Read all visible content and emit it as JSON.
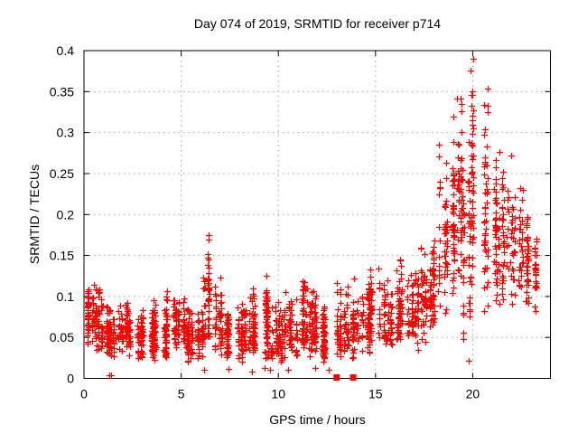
{
  "chart_data": {
    "type": "scatter",
    "title": "Day 074 of 2019, SRMTID for receiver p714",
    "xlabel": "GPS time / hours",
    "ylabel": "SRMTID / TECUs",
    "xlim": [
      0,
      24
    ],
    "ylim": [
      0,
      0.4
    ],
    "xticks": {
      "values": [
        0,
        5,
        10,
        15,
        20
      ],
      "labels": [
        "0",
        "5",
        "10",
        "15",
        "20"
      ]
    },
    "yticks": {
      "values": [
        0,
        0.05,
        0.1,
        0.15,
        0.2,
        0.25,
        0.3,
        0.35,
        0.4
      ],
      "labels": [
        "0",
        "0.05",
        "0.1",
        "0.15",
        "0.2",
        "0.25",
        "0.3",
        "0.35",
        "0.4"
      ]
    },
    "grid": {
      "on": true,
      "style": "dotted",
      "color": "#9e9e9e"
    },
    "legend": {
      "visible": false
    },
    "marker": {
      "symbol": "plus",
      "size": 7,
      "color": "#ff0000"
    },
    "series_name": "SRMTID",
    "seed": 20190074,
    "columns_per_hour": 6,
    "x_jitter": 0.045,
    "density_segments": [
      {
        "x0": 0.0,
        "x1": 0.35,
        "n": 40,
        "ymin": 0.035,
        "ymode": 0.075,
        "ymax": 0.115
      },
      {
        "x0": 0.35,
        "x1": 0.8,
        "n": 55,
        "ymin": 0.03,
        "ymode": 0.065,
        "ymax": 0.12
      },
      {
        "x0": 0.8,
        "x1": 1.25,
        "n": 50,
        "ymin": 0.025,
        "ymode": 0.055,
        "ymax": 0.105
      },
      {
        "x0": 1.25,
        "x1": 1.75,
        "n": 50,
        "ymin": 0.02,
        "ymode": 0.045,
        "ymax": 0.09
      },
      {
        "x0": 1.75,
        "x1": 2.35,
        "n": 60,
        "ymin": 0.025,
        "ymode": 0.05,
        "ymax": 0.1
      },
      {
        "x0": 2.35,
        "x1": 2.95,
        "n": 60,
        "ymin": 0.02,
        "ymode": 0.045,
        "ymax": 0.085
      },
      {
        "x0": 2.95,
        "x1": 3.55,
        "n": 60,
        "ymin": 0.02,
        "ymode": 0.045,
        "ymax": 0.095
      },
      {
        "x0": 3.55,
        "x1": 4.15,
        "n": 60,
        "ymin": 0.02,
        "ymode": 0.05,
        "ymax": 0.105
      },
      {
        "x0": 4.15,
        "x1": 4.65,
        "n": 55,
        "ymin": 0.025,
        "ymode": 0.055,
        "ymax": 0.115
      },
      {
        "x0": 4.65,
        "x1": 5.15,
        "n": 60,
        "ymin": 0.03,
        "ymode": 0.06,
        "ymax": 0.11
      },
      {
        "x0": 5.15,
        "x1": 5.75,
        "n": 55,
        "ymin": 0.02,
        "ymode": 0.045,
        "ymax": 0.09
      },
      {
        "x0": 5.75,
        "x1": 6.15,
        "n": 45,
        "ymin": 0.02,
        "ymode": 0.05,
        "ymax": 0.095
      },
      {
        "x0": 6.15,
        "x1": 6.65,
        "n": 50,
        "ymin": 0.03,
        "ymode": 0.08,
        "ymax": 0.185
      },
      {
        "x0": 6.65,
        "x1": 7.15,
        "n": 50,
        "ymin": 0.025,
        "ymode": 0.055,
        "ymax": 0.13
      },
      {
        "x0": 7.15,
        "x1": 7.65,
        "n": 50,
        "ymin": 0.02,
        "ymode": 0.045,
        "ymax": 0.1
      },
      {
        "x0": 7.65,
        "x1": 8.35,
        "n": 65,
        "ymin": 0.02,
        "ymode": 0.05,
        "ymax": 0.1
      },
      {
        "x0": 8.35,
        "x1": 8.95,
        "n": 60,
        "ymin": 0.02,
        "ymode": 0.05,
        "ymax": 0.12
      },
      {
        "x0": 8.95,
        "x1": 9.55,
        "n": 60,
        "ymin": 0.015,
        "ymode": 0.045,
        "ymax": 0.13
      },
      {
        "x0": 9.55,
        "x1": 10.25,
        "n": 65,
        "ymin": 0.015,
        "ymode": 0.04,
        "ymax": 0.1
      },
      {
        "x0": 10.25,
        "x1": 10.95,
        "n": 65,
        "ymin": 0.02,
        "ymode": 0.05,
        "ymax": 0.115
      },
      {
        "x0": 10.95,
        "x1": 11.55,
        "n": 60,
        "ymin": 0.025,
        "ymode": 0.06,
        "ymax": 0.135
      },
      {
        "x0": 11.55,
        "x1": 12.25,
        "n": 65,
        "ymin": 0.02,
        "ymode": 0.05,
        "ymax": 0.115
      },
      {
        "x0": 12.25,
        "x1": 12.95,
        "n": 60,
        "ymin": 0.015,
        "ymode": 0.04,
        "ymax": 0.095
      },
      {
        "x0": 12.95,
        "x1": 13.45,
        "n": 50,
        "ymin": 0.02,
        "ymode": 0.045,
        "ymax": 0.13
      },
      {
        "x0": 13.45,
        "x1": 14.05,
        "n": 55,
        "ymin": 0.02,
        "ymode": 0.05,
        "ymax": 0.125
      },
      {
        "x0": 14.05,
        "x1": 14.65,
        "n": 55,
        "ymin": 0.03,
        "ymode": 0.06,
        "ymax": 0.13
      },
      {
        "x0": 14.65,
        "x1": 15.25,
        "n": 55,
        "ymin": 0.03,
        "ymode": 0.065,
        "ymax": 0.155
      },
      {
        "x0": 15.25,
        "x1": 15.85,
        "n": 55,
        "ymin": 0.03,
        "ymode": 0.06,
        "ymax": 0.13
      },
      {
        "x0": 15.85,
        "x1": 16.45,
        "n": 55,
        "ymin": 0.035,
        "ymode": 0.065,
        "ymax": 0.155
      },
      {
        "x0": 16.45,
        "x1": 17.05,
        "n": 55,
        "ymin": 0.04,
        "ymode": 0.07,
        "ymax": 0.14
      },
      {
        "x0": 17.05,
        "x1": 17.65,
        "n": 55,
        "ymin": 0.04,
        "ymode": 0.08,
        "ymax": 0.165
      },
      {
        "x0": 17.65,
        "x1": 18.2,
        "n": 55,
        "ymin": 0.05,
        "ymode": 0.09,
        "ymax": 0.19
      },
      {
        "x0": 18.2,
        "x1": 18.7,
        "n": 50,
        "ymin": 0.07,
        "ymode": 0.13,
        "ymax": 0.3
      },
      {
        "x0": 18.7,
        "x1": 19.1,
        "n": 45,
        "ymin": 0.09,
        "ymode": 0.18,
        "ymax": 0.36
      },
      {
        "x0": 19.1,
        "x1": 19.45,
        "n": 48,
        "ymin": 0.1,
        "ymode": 0.22,
        "ymax": 0.4
      },
      {
        "x0": 19.45,
        "x1": 19.9,
        "n": 45,
        "ymin": 0.025,
        "ymode": 0.1,
        "ymax": 0.3
      },
      {
        "x0": 19.9,
        "x1": 20.3,
        "n": 45,
        "ymin": 0.06,
        "ymode": 0.14,
        "ymax": 0.4
      },
      {
        "x0": 20.3,
        "x1": 20.8,
        "n": 48,
        "ymin": 0.07,
        "ymode": 0.16,
        "ymax": 0.4
      },
      {
        "x0": 20.8,
        "x1": 21.4,
        "n": 50,
        "ymin": 0.07,
        "ymode": 0.14,
        "ymax": 0.3
      },
      {
        "x0": 21.4,
        "x1": 22.0,
        "n": 50,
        "ymin": 0.08,
        "ymode": 0.14,
        "ymax": 0.28
      },
      {
        "x0": 22.0,
        "x1": 22.6,
        "n": 50,
        "ymin": 0.08,
        "ymode": 0.15,
        "ymax": 0.27
      },
      {
        "x0": 22.6,
        "x1": 23.1,
        "n": 40,
        "ymin": 0.07,
        "ymode": 0.13,
        "ymax": 0.21
      },
      {
        "x0": 23.1,
        "x1": 23.45,
        "n": 25,
        "ymin": 0.08,
        "ymode": 0.13,
        "ymax": 0.19
      }
    ],
    "isolated_points": [
      [
        1.3,
        0.004
      ],
      [
        1.38,
        0.004
      ],
      [
        6.2,
        0.01
      ],
      [
        7.45,
        0.012
      ],
      [
        8.65,
        0.008
      ],
      [
        9.3,
        0.013
      ],
      [
        9.55,
        0.01
      ],
      [
        10.5,
        0.01
      ],
      [
        11.9,
        0.013
      ],
      [
        12.6,
        0.01
      ],
      [
        17.2,
        0.035
      ],
      [
        19.8,
        0.022
      ]
    ],
    "zero_squares": {
      "x": [
        13.0,
        13.85
      ],
      "y": 0,
      "size": 7,
      "color": "#ff0000"
    }
  }
}
